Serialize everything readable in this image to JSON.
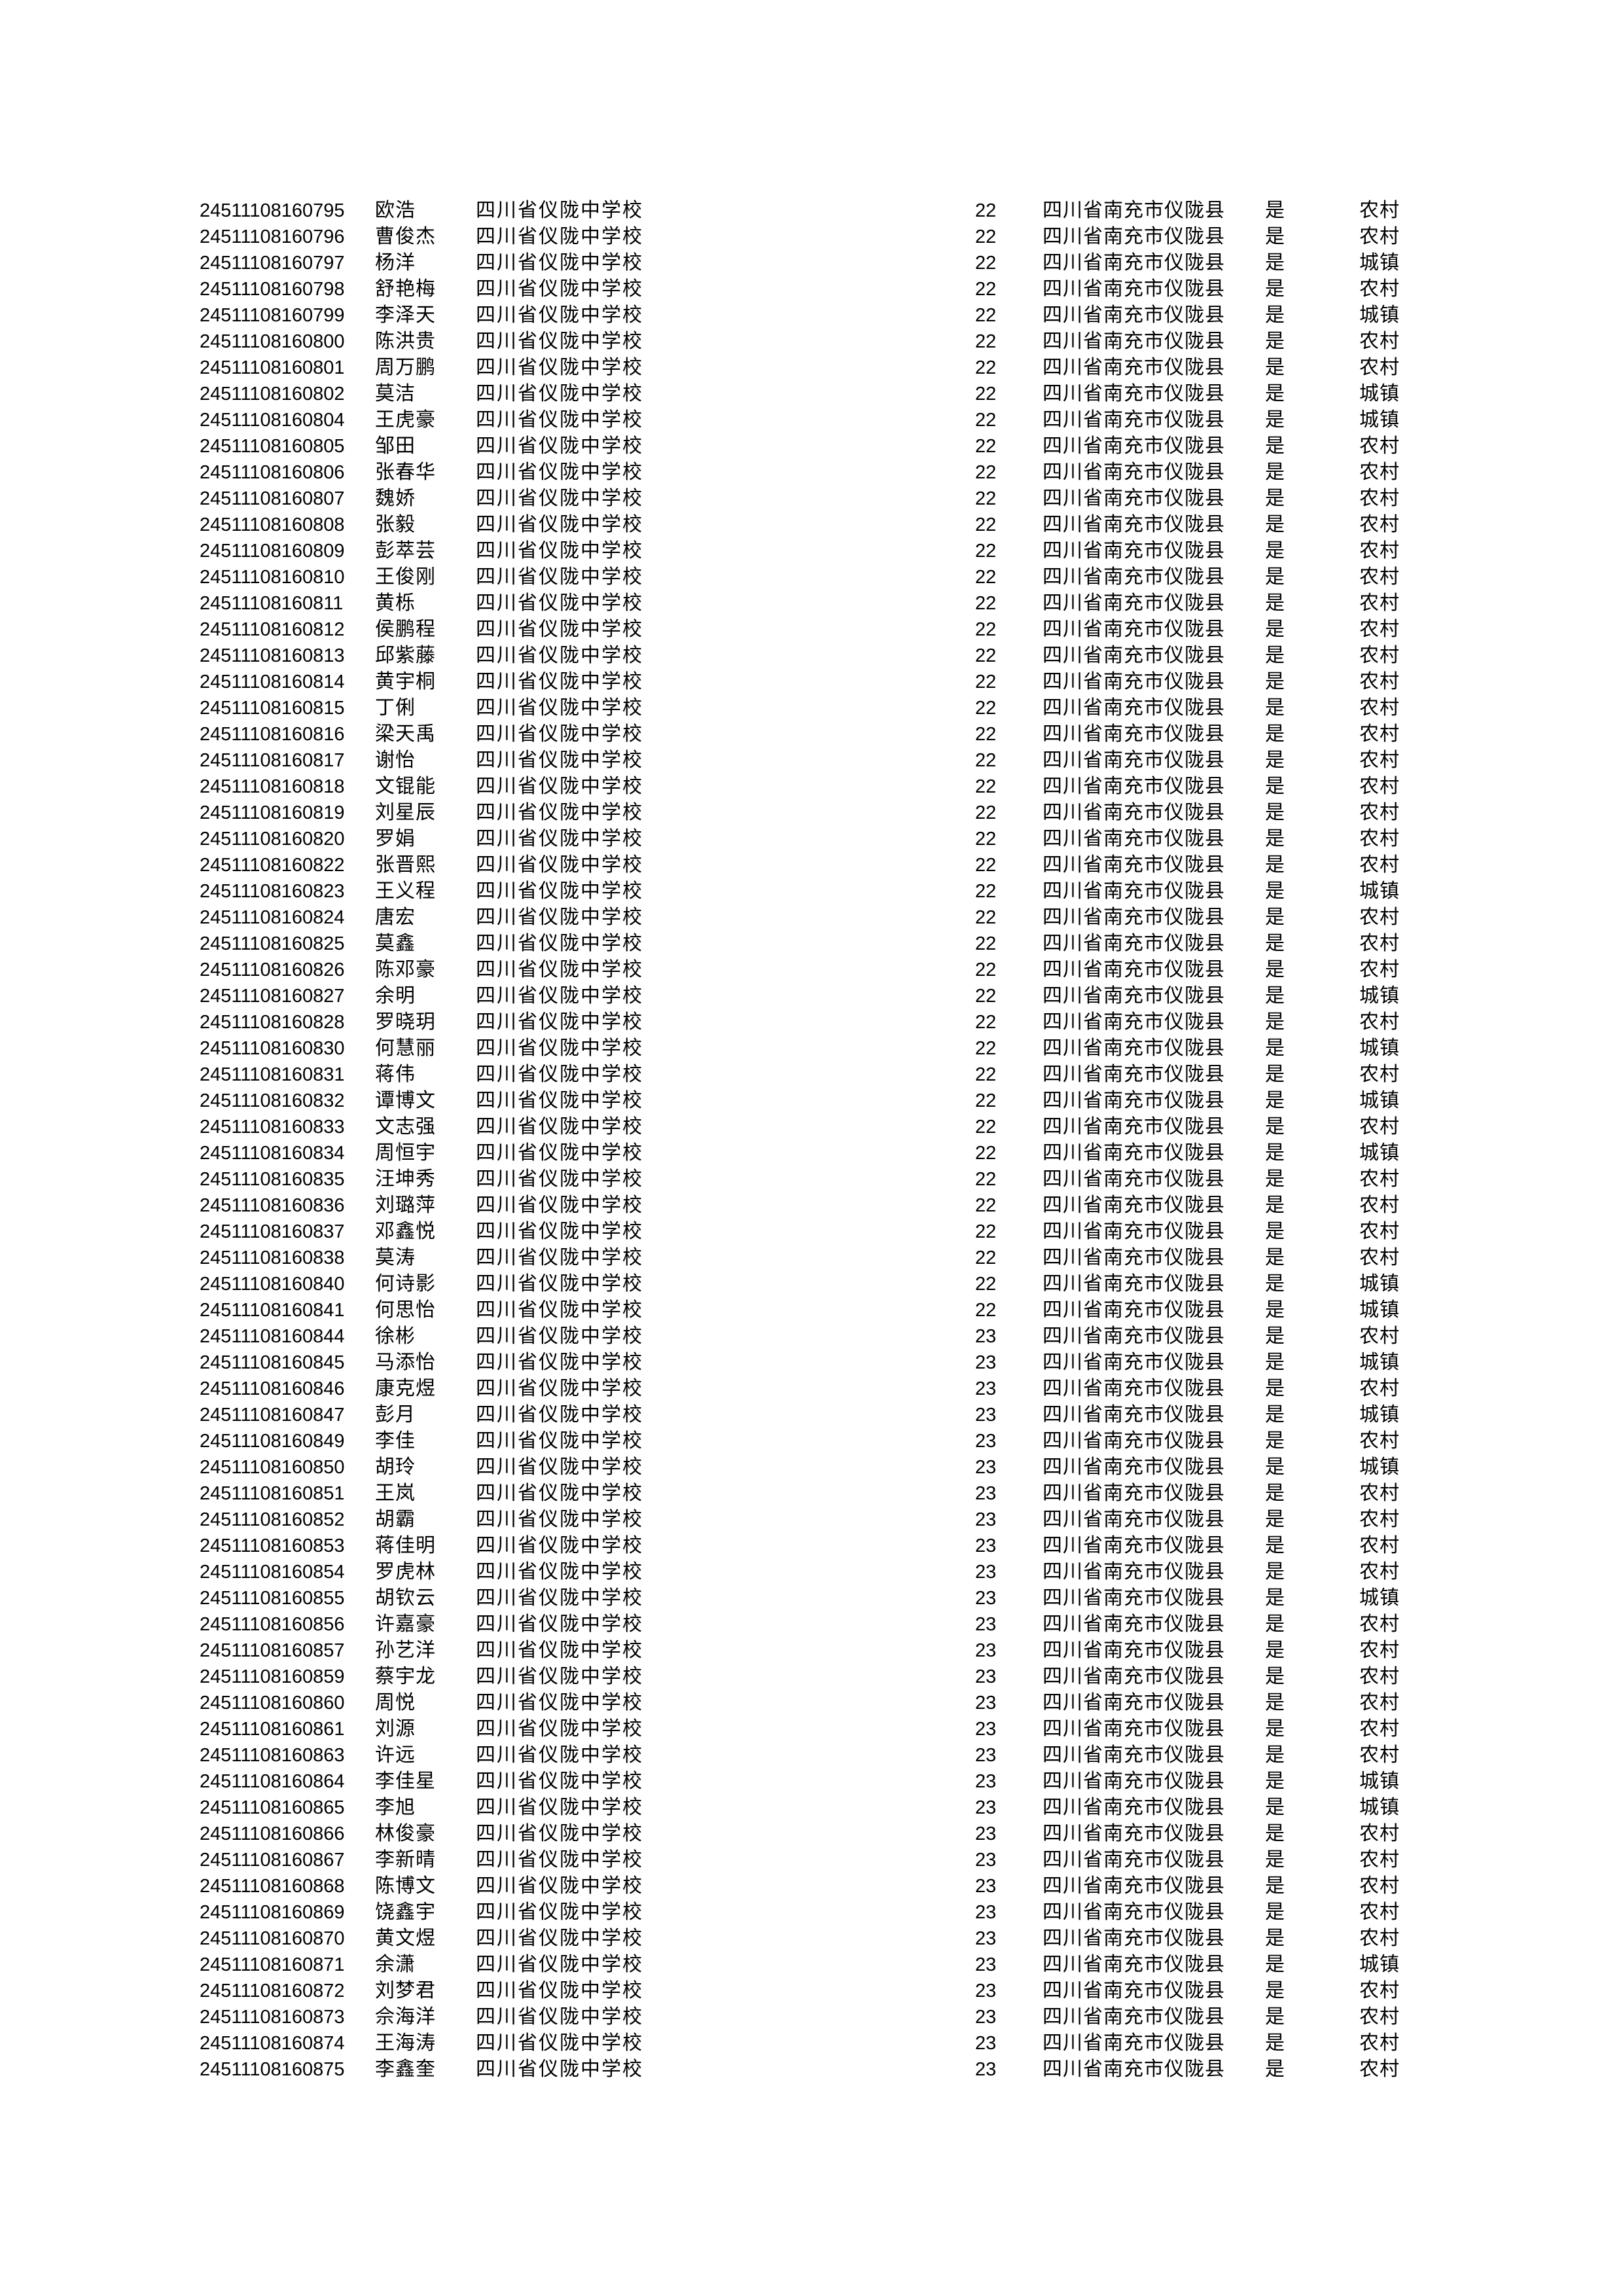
{
  "document": {
    "constants": {
      "school": "四川省仪陇中学校",
      "region": "四川省南充市仪陇县",
      "confirm": "是"
    },
    "row_fields": [
      "id",
      "name",
      "age",
      "residence"
    ],
    "rows": [
      [
        "24511108160795",
        "欧浩",
        "22",
        "农村"
      ],
      [
        "24511108160796",
        "曹俊杰",
        "22",
        "农村"
      ],
      [
        "24511108160797",
        "杨洋",
        "22",
        "城镇"
      ],
      [
        "24511108160798",
        "舒艳梅",
        "22",
        "农村"
      ],
      [
        "24511108160799",
        "李泽天",
        "22",
        "城镇"
      ],
      [
        "24511108160800",
        "陈洪贵",
        "22",
        "农村"
      ],
      [
        "24511108160801",
        "周万鹏",
        "22",
        "农村"
      ],
      [
        "24511108160802",
        "莫洁",
        "22",
        "城镇"
      ],
      [
        "24511108160804",
        "王虎豪",
        "22",
        "城镇"
      ],
      [
        "24511108160805",
        "邹田",
        "22",
        "农村"
      ],
      [
        "24511108160806",
        "张春华",
        "22",
        "农村"
      ],
      [
        "24511108160807",
        "魏娇",
        "22",
        "农村"
      ],
      [
        "24511108160808",
        "张毅",
        "22",
        "农村"
      ],
      [
        "24511108160809",
        "彭萃芸",
        "22",
        "农村"
      ],
      [
        "24511108160810",
        "王俊刚",
        "22",
        "农村"
      ],
      [
        "24511108160811",
        "黄栎",
        "22",
        "农村"
      ],
      [
        "24511108160812",
        "侯鹏程",
        "22",
        "农村"
      ],
      [
        "24511108160813",
        "邱紫藤",
        "22",
        "农村"
      ],
      [
        "24511108160814",
        "黄宇桐",
        "22",
        "农村"
      ],
      [
        "24511108160815",
        "丁俐",
        "22",
        "农村"
      ],
      [
        "24511108160816",
        "梁天禹",
        "22",
        "农村"
      ],
      [
        "24511108160817",
        "谢怡",
        "22",
        "农村"
      ],
      [
        "24511108160818",
        "文锟能",
        "22",
        "农村"
      ],
      [
        "24511108160819",
        "刘星辰",
        "22",
        "农村"
      ],
      [
        "24511108160820",
        "罗娟",
        "22",
        "农村"
      ],
      [
        "24511108160822",
        "张晋熙",
        "22",
        "农村"
      ],
      [
        "24511108160823",
        "王义程",
        "22",
        "城镇"
      ],
      [
        "24511108160824",
        "唐宏",
        "22",
        "农村"
      ],
      [
        "24511108160825",
        "莫鑫",
        "22",
        "农村"
      ],
      [
        "24511108160826",
        "陈邓豪",
        "22",
        "农村"
      ],
      [
        "24511108160827",
        "余明",
        "22",
        "城镇"
      ],
      [
        "24511108160828",
        "罗晓玥",
        "22",
        "农村"
      ],
      [
        "24511108160830",
        "何慧丽",
        "22",
        "城镇"
      ],
      [
        "24511108160831",
        "蒋伟",
        "22",
        "农村"
      ],
      [
        "24511108160832",
        "谭博文",
        "22",
        "城镇"
      ],
      [
        "24511108160833",
        "文志强",
        "22",
        "农村"
      ],
      [
        "24511108160834",
        "周恒宇",
        "22",
        "城镇"
      ],
      [
        "24511108160835",
        "汪坤秀",
        "22",
        "农村"
      ],
      [
        "24511108160836",
        "刘璐萍",
        "22",
        "农村"
      ],
      [
        "24511108160837",
        "邓鑫悦",
        "22",
        "农村"
      ],
      [
        "24511108160838",
        "莫涛",
        "22",
        "农村"
      ],
      [
        "24511108160840",
        "何诗影",
        "22",
        "城镇"
      ],
      [
        "24511108160841",
        "何思怡",
        "22",
        "城镇"
      ],
      [
        "24511108160844",
        "徐彬",
        "23",
        "农村"
      ],
      [
        "24511108160845",
        "马添怡",
        "23",
        "城镇"
      ],
      [
        "24511108160846",
        "康克煜",
        "23",
        "农村"
      ],
      [
        "24511108160847",
        "彭月",
        "23",
        "城镇"
      ],
      [
        "24511108160849",
        "李佳",
        "23",
        "农村"
      ],
      [
        "24511108160850",
        "胡玲",
        "23",
        "城镇"
      ],
      [
        "24511108160851",
        "王岚",
        "23",
        "农村"
      ],
      [
        "24511108160852",
        "胡霸",
        "23",
        "农村"
      ],
      [
        "24511108160853",
        "蒋佳明",
        "23",
        "农村"
      ],
      [
        "24511108160854",
        "罗虎林",
        "23",
        "农村"
      ],
      [
        "24511108160855",
        "胡钦云",
        "23",
        "城镇"
      ],
      [
        "24511108160856",
        "许嘉豪",
        "23",
        "农村"
      ],
      [
        "24511108160857",
        "孙艺洋",
        "23",
        "农村"
      ],
      [
        "24511108160859",
        "蔡宇龙",
        "23",
        "农村"
      ],
      [
        "24511108160860",
        "周悦",
        "23",
        "农村"
      ],
      [
        "24511108160861",
        "刘源",
        "23",
        "农村"
      ],
      [
        "24511108160863",
        "许远",
        "23",
        "农村"
      ],
      [
        "24511108160864",
        "李佳星",
        "23",
        "城镇"
      ],
      [
        "24511108160865",
        "李旭",
        "23",
        "城镇"
      ],
      [
        "24511108160866",
        "林俊豪",
        "23",
        "农村"
      ],
      [
        "24511108160867",
        "李新晴",
        "23",
        "农村"
      ],
      [
        "24511108160868",
        "陈博文",
        "23",
        "农村"
      ],
      [
        "24511108160869",
        "饶鑫宇",
        "23",
        "农村"
      ],
      [
        "24511108160870",
        "黄文煜",
        "23",
        "农村"
      ],
      [
        "24511108160871",
        "余潇",
        "23",
        "城镇"
      ],
      [
        "24511108160872",
        "刘梦君",
        "23",
        "农村"
      ],
      [
        "24511108160873",
        "佘海洋",
        "23",
        "农村"
      ],
      [
        "24511108160874",
        "王海涛",
        "23",
        "农村"
      ],
      [
        "24511108160875",
        "李鑫奎",
        "23",
        "农村"
      ]
    ]
  }
}
